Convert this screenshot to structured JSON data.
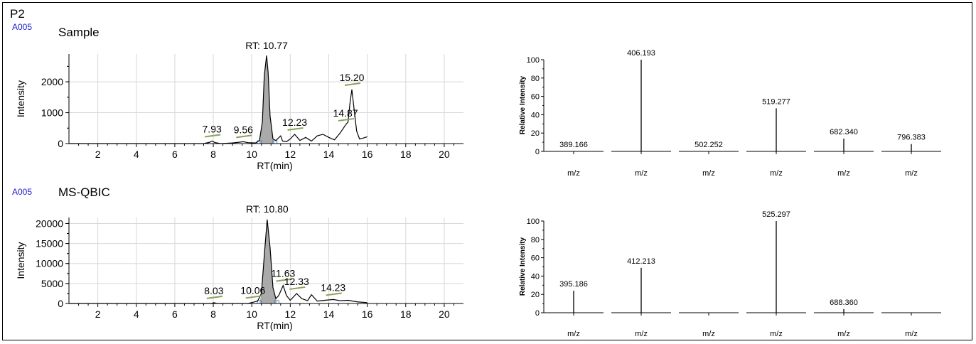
{
  "panel_label": "P2",
  "colors": {
    "trace_code": "#1a1acc",
    "peak_fill": "#aaaaaa",
    "baseline_marker": "#4a86c8",
    "annotation_bar": "#8aa25a",
    "grid": "#d8d8d8",
    "line": "#000000"
  },
  "chart_data": [
    {
      "id": "sample-chromatogram",
      "type": "line",
      "trace_code": "A005",
      "trace_name": "Sample",
      "xlabel": "RT(min)",
      "ylabel": "Intensity",
      "xlim": [
        0.5,
        21
      ],
      "ylim": [
        0,
        2900
      ],
      "xticks": [
        2,
        4,
        6,
        8,
        10,
        12,
        14,
        16,
        18,
        20
      ],
      "yticks": [
        0,
        1000,
        2000
      ],
      "grid": true,
      "highlight_peak_label": "RT: 10.77",
      "x": [
        0.5,
        7.5,
        7.8,
        7.93,
        8.1,
        8.4,
        9.0,
        9.3,
        9.56,
        9.8,
        10.2,
        10.4,
        10.55,
        10.65,
        10.77,
        10.85,
        10.95,
        11.1,
        11.25,
        11.5,
        11.6,
        11.8,
        12.0,
        12.23,
        12.5,
        12.8,
        13.1,
        13.4,
        13.7,
        14.0,
        14.3,
        14.6,
        14.87,
        15.0,
        15.1,
        15.2,
        15.3,
        15.45,
        15.6,
        15.8,
        16.0
      ],
      "y": [
        0,
        0,
        40,
        80,
        30,
        0,
        20,
        40,
        60,
        30,
        20,
        100,
        700,
        2200,
        2850,
        2300,
        900,
        150,
        100,
        250,
        80,
        60,
        150,
        300,
        100,
        200,
        80,
        250,
        300,
        200,
        120,
        350,
        600,
        700,
        1300,
        1750,
        1200,
        400,
        150,
        180,
        220
      ],
      "peak_labels": [
        {
          "x": 7.93,
          "label": "7.93"
        },
        {
          "x": 9.56,
          "label": "9.56"
        },
        {
          "x": 12.23,
          "label": "12.23"
        },
        {
          "x": 14.87,
          "label": "14.87"
        },
        {
          "x": 15.2,
          "label": "15.20"
        }
      ],
      "highlight_range": [
        10.4,
        11.2
      ]
    },
    {
      "id": "msqbic-chromatogram",
      "type": "line",
      "trace_code": "A005",
      "trace_name": "MS-QBIC",
      "xlabel": "RT(min)",
      "ylabel": "Intensity",
      "xlim": [
        0.5,
        21
      ],
      "ylim": [
        0,
        21500
      ],
      "xticks": [
        2,
        4,
        6,
        8,
        10,
        12,
        14,
        16,
        18,
        20
      ],
      "yticks": [
        0,
        5000,
        10000,
        15000,
        20000
      ],
      "grid": true,
      "highlight_peak_label": "RT: 10.80",
      "x": [
        0.5,
        7.9,
        8.03,
        8.2,
        9.8,
        10.06,
        10.3,
        10.5,
        10.65,
        10.8,
        10.95,
        11.1,
        11.25,
        11.4,
        11.63,
        11.8,
        12.0,
        12.33,
        12.6,
        12.9,
        13.1,
        13.4,
        13.8,
        14.23,
        14.6,
        15.0,
        15.5,
        16.0
      ],
      "y": [
        0,
        0,
        200,
        0,
        0,
        300,
        600,
        2500,
        12000,
        21000,
        14000,
        4000,
        1200,
        2000,
        4500,
        2000,
        800,
        2500,
        1200,
        700,
        2200,
        600,
        800,
        1000,
        700,
        800,
        400,
        200
      ],
      "peak_labels": [
        {
          "x": 8.03,
          "label": "8.03"
        },
        {
          "x": 10.06,
          "label": "10.06"
        },
        {
          "x": 11.63,
          "label": "11.63"
        },
        {
          "x": 12.33,
          "label": "12.33"
        },
        {
          "x": 14.23,
          "label": "14.23"
        }
      ],
      "highlight_range": [
        10.4,
        11.3
      ]
    },
    {
      "id": "sample-spectrum",
      "type": "bar",
      "ylabel": "Relative Intensity",
      "ylim": [
        0,
        100
      ],
      "yticks": [
        0,
        20,
        40,
        60,
        80,
        100
      ],
      "xlabel": "m/z",
      "peaks": [
        {
          "mz": "389.166",
          "value": 0
        },
        {
          "mz": "406.193",
          "value": 100
        },
        {
          "mz": "502.252",
          "value": 0
        },
        {
          "mz": "519.277",
          "value": 47
        },
        {
          "mz": "682.340",
          "value": 14
        },
        {
          "mz": "796.383",
          "value": 8
        }
      ]
    },
    {
      "id": "msqbic-spectrum",
      "type": "bar",
      "ylabel": "Relative Intensity",
      "ylim": [
        0,
        100
      ],
      "yticks": [
        0,
        20,
        40,
        60,
        80,
        100
      ],
      "xlabel": "m/z",
      "peaks": [
        {
          "mz": "395.186",
          "value": 24
        },
        {
          "mz": "412.213",
          "value": 49
        },
        {
          "mz": "",
          "value": 0
        },
        {
          "mz": "525.297",
          "value": 100
        },
        {
          "mz": "688.360",
          "value": 4
        },
        {
          "mz": "",
          "value": 0
        }
      ]
    }
  ]
}
